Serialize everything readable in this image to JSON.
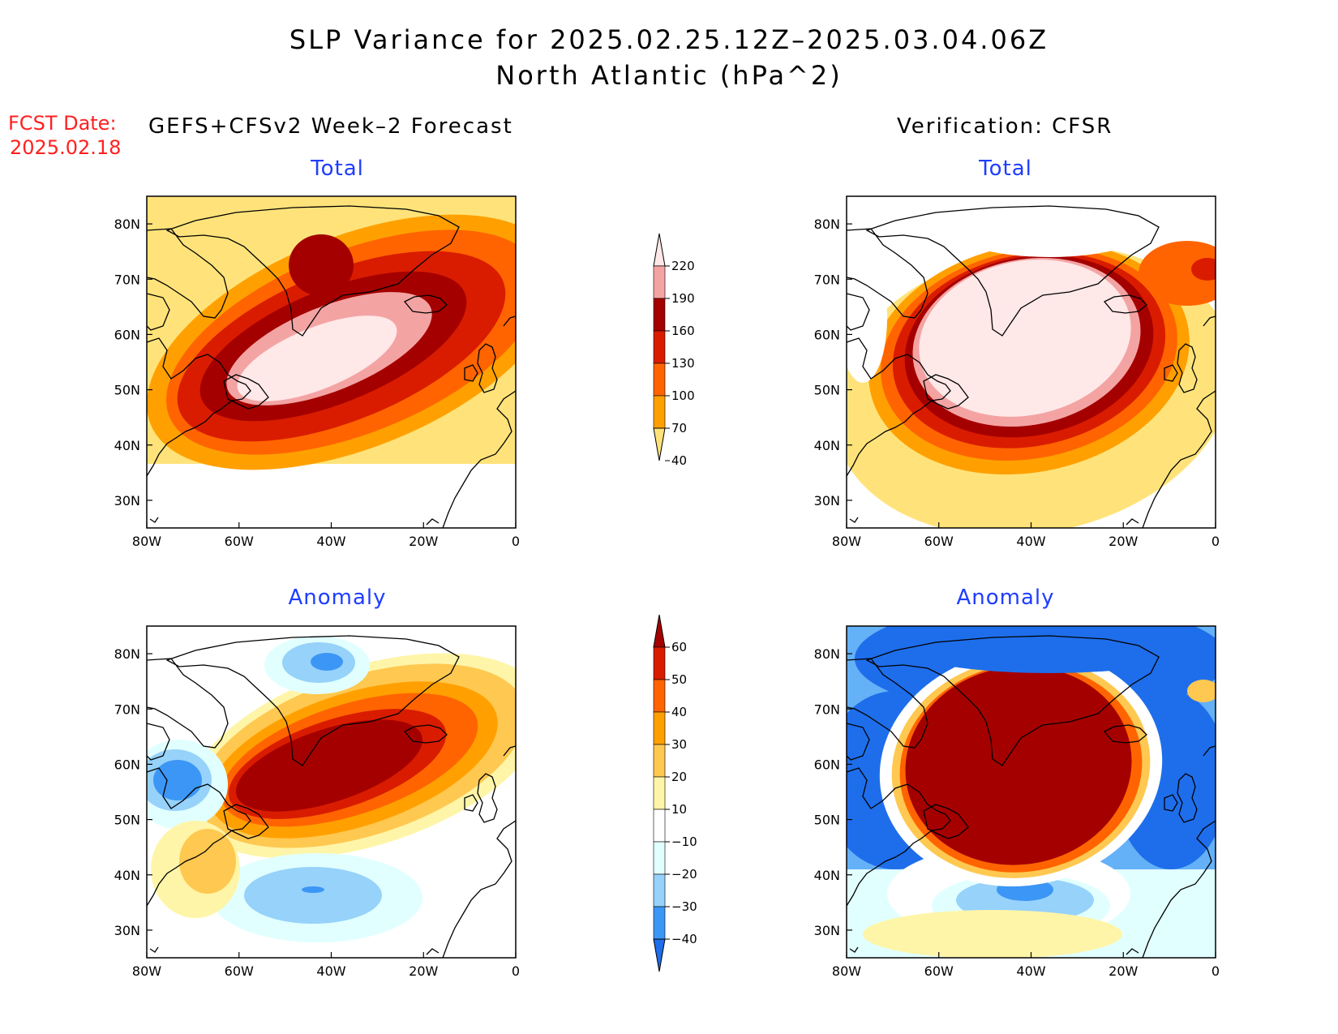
{
  "title": {
    "line1": "SLP Variance for 2025.02.25.12Z–2025.03.04.06Z",
    "line2": "North Atlantic (hPa^2)"
  },
  "fcst": {
    "label": "FCST Date:",
    "date": "2025.02.18"
  },
  "columns": {
    "left": "GEFS+CFSv2 Week–2 Forecast",
    "right": "Verification: CFSR"
  },
  "panels": [
    {
      "id": "fcst-total",
      "title": "Total"
    },
    {
      "id": "verif-total",
      "title": "Total"
    },
    {
      "id": "fcst-anomaly",
      "title": "Anomaly"
    },
    {
      "id": "verif-anomaly",
      "title": "Anomaly"
    }
  ],
  "axes": {
    "lon_ticks": [
      "80W",
      "60W",
      "40W",
      "20W",
      "0"
    ],
    "lat_ticks": [
      "80N",
      "70N",
      "60N",
      "50N",
      "40N",
      "30N"
    ],
    "lon_range": [
      -80,
      0
    ],
    "lat_range": [
      25,
      85
    ]
  },
  "colorbars": {
    "total": {
      "levels": [
        "220",
        "190",
        "160",
        "130",
        "100",
        "70",
        "40"
      ],
      "colors": [
        "#ffe8e8",
        "#f4a3a3",
        "#a50000",
        "#d91c00",
        "#ff6400",
        "#ffa000",
        "#ffe37a"
      ]
    },
    "anomaly": {
      "levels": [
        "60",
        "50",
        "40",
        "30",
        "20",
        "10",
        "−10",
        "−20",
        "−30",
        "−40"
      ],
      "colors": [
        "#a50000",
        "#d91c00",
        "#ff6400",
        "#ffa000",
        "#ffc850",
        "#fff5a8",
        "#ffffff",
        "#e1ffff",
        "#96d2fa",
        "#3c96f5",
        "#1e6eeb"
      ]
    }
  },
  "chart_data": [
    {
      "type": "heatmap",
      "panel": "fcst-total",
      "field": "SLP variance total (hPa^2)",
      "features": [
        {
          "region": "central North Atlantic 45-62N, 60-25W",
          "level": ">220"
        },
        {
          "region": "broad ring 40-65N",
          "level": "160-190"
        },
        {
          "region": "edges / Labrador",
          "level": "40-100"
        }
      ]
    },
    {
      "type": "heatmap",
      "panel": "verif-total",
      "field": "SLP variance total (hPa^2)",
      "features": [
        {
          "region": "Greenland to 45N, 65-25W",
          "level": ">220"
        },
        {
          "region": "ring around core",
          "level": "130-190"
        },
        {
          "region": "N Greenland / Hudson Bay",
          "level": "<40"
        }
      ]
    },
    {
      "type": "heatmap",
      "panel": "fcst-anomaly",
      "field": "SLP variance anomaly (hPa^2)",
      "features": [
        {
          "region": "45-65N, 65-20W",
          "level": ">60"
        },
        {
          "region": "Labrador Sea 55N 70W",
          "level": "-30 to -40"
        },
        {
          "region": "38N 40W",
          "level": "-30"
        },
        {
          "region": "78N 40W",
          "level": "-30"
        }
      ]
    },
    {
      "type": "heatmap",
      "panel": "verif-anomaly",
      "field": "SLP variance anomaly (hPa^2)",
      "features": [
        {
          "region": "Greenland to 45N, 65-25W",
          "level": ">60"
        },
        {
          "region": "Arctic / Hudson Bay / NE Atlantic",
          "level": "-30 to -40"
        },
        {
          "region": "38N 40W",
          "level": "-30 to -40"
        }
      ]
    }
  ]
}
